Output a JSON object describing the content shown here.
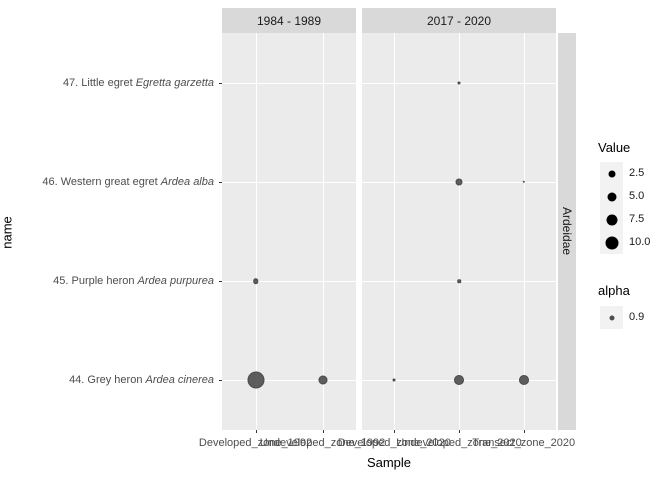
{
  "chart_data": {
    "type": "scatter",
    "subtype": "faceted-bubble-plot",
    "title": "",
    "xlabel": "Sample",
    "ylabel": "name",
    "row_facet_label": "Ardeidae",
    "grid": "major-white-on-grey",
    "legend_position": "right",
    "col_facets": [
      {
        "label": "1984 - 1989",
        "samples": [
          "Developed_zone_1992",
          "Undeveloped_zone_1992"
        ]
      },
      {
        "label": "2017 - 2020",
        "samples": [
          "Developed_zone_2020",
          "Undeveloped_zone_2020",
          "Transect_zone_2020"
        ]
      }
    ],
    "species_rows": [
      {
        "prefix": "47. Little egret",
        "species": "Egretta garzetta"
      },
      {
        "prefix": "46. Western great egret",
        "species": "Ardea alba"
      },
      {
        "prefix": "45. Purple heron",
        "species": "Ardea purpurea"
      },
      {
        "prefix": "44. Grey heron",
        "species": "Ardea cinerea"
      }
    ],
    "points": [
      {
        "facet": 0,
        "sample": "Developed_zone_1992",
        "row": 2,
        "value": 1.5,
        "d": 5.5
      },
      {
        "facet": 0,
        "sample": "Developed_zone_1992",
        "row": 3,
        "value": 18,
        "d": 17
      },
      {
        "facet": 0,
        "sample": "Undeveloped_zone_1992",
        "row": 3,
        "value": 5,
        "d": 9
      },
      {
        "facet": 1,
        "sample": "Undeveloped_zone_2020",
        "row": 0,
        "value": 0.5,
        "d": 3
      },
      {
        "facet": 1,
        "sample": "Undeveloped_zone_2020",
        "row": 1,
        "value": 2.5,
        "d": 7
      },
      {
        "facet": 1,
        "sample": "Transect_zone_2020",
        "row": 1,
        "value": 0.5,
        "d": 2.5
      },
      {
        "facet": 1,
        "sample": "Undeveloped_zone_2020",
        "row": 2,
        "value": 0.7,
        "d": 3.5
      },
      {
        "facet": 1,
        "sample": "Developed_zone_2020",
        "row": 3,
        "value": 0.5,
        "d": 3
      },
      {
        "facet": 1,
        "sample": "Undeveloped_zone_2020",
        "row": 3,
        "value": 6,
        "d": 10
      },
      {
        "facet": 1,
        "sample": "Transect_zone_2020",
        "row": 3,
        "value": 6,
        "d": 10
      }
    ],
    "legend": {
      "size": {
        "title": "Value",
        "entries": [
          {
            "label": "2.5",
            "d": 7
          },
          {
            "label": "5.0",
            "d": 9
          },
          {
            "label": "7.5",
            "d": 11
          },
          {
            "label": "10.0",
            "d": 13
          }
        ]
      },
      "alpha": {
        "title": "alpha",
        "entries": [
          {
            "label": "0.9",
            "d": 5
          }
        ]
      }
    }
  },
  "style": {
    "background": "#ffffff",
    "panel_bg": "#ebebeb",
    "strip_bg": "#d9d9d9",
    "gridline": "#ffffff",
    "dot_color": "#4d4d4d",
    "dot_alpha": 0.9,
    "legend_dot_color": "#000000",
    "legend_alpha_dot_color": "#4d4d4d",
    "legend_key_bg": "#f2f2f2",
    "axis_text_color": "#4d4d4d",
    "title_text_color": "#000000",
    "strip_text_color": "#1a1a1a"
  }
}
